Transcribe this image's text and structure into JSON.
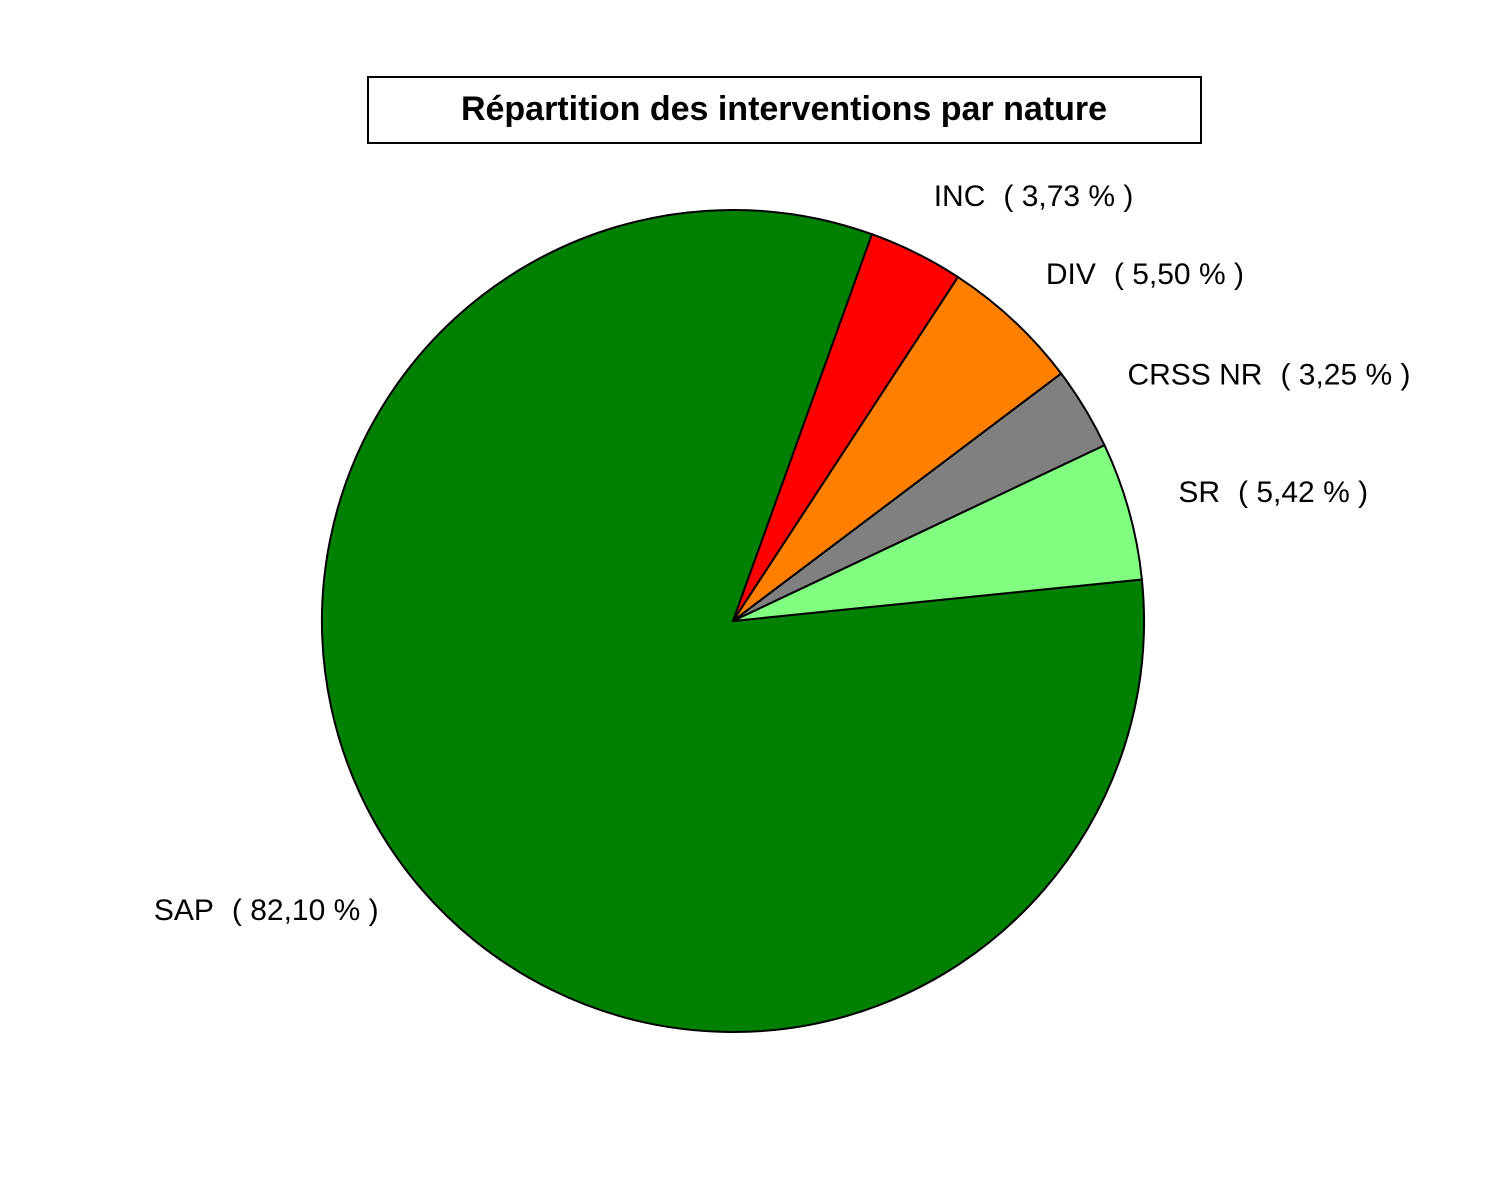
{
  "chart_data": {
    "type": "pie",
    "title": "Répartition des interventions par nature",
    "categories": [
      "SAP",
      "INC",
      "DIV",
      "CRSS NR",
      "SR"
    ],
    "values": [
      82.1,
      3.73,
      5.5,
      3.25,
      5.42
    ],
    "value_labels": [
      "( 82,10 % )",
      "( 3,73 % )",
      "( 5,50 % )",
      "( 3,25 % )",
      "( 5,42 % )"
    ],
    "colors": [
      "#008000",
      "#ff0000",
      "#ff8000",
      "#808080",
      "#80ff80"
    ]
  }
}
